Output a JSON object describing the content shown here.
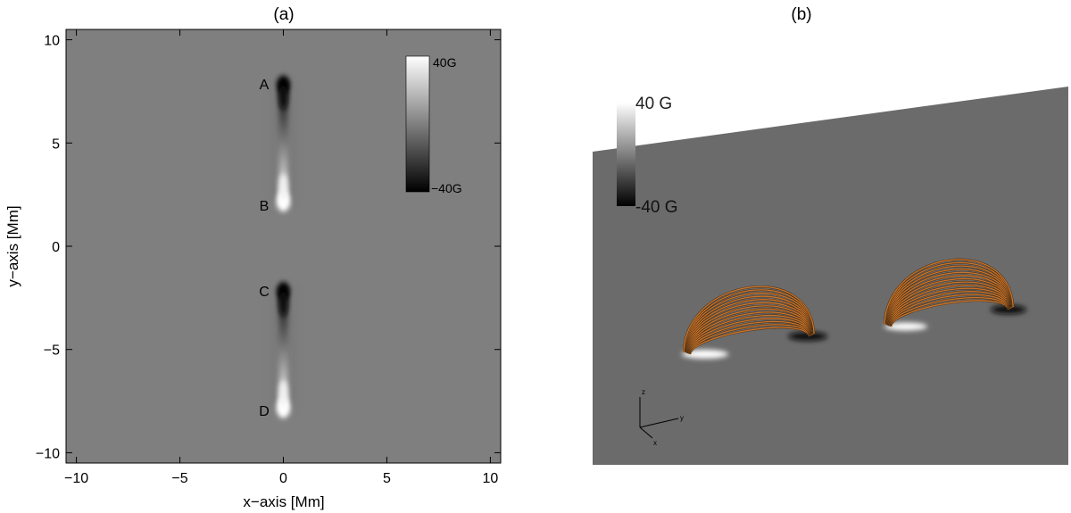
{
  "panel_a": {
    "label": "(a)",
    "colorbar": {
      "max_label": "40G",
      "min_label": "−40G"
    }
  },
  "panel_b": {
    "label": "(b)",
    "colorbar": {
      "max_label": "40 G",
      "min_label": "-40 G"
    },
    "axes_triad": {
      "z": "z",
      "y": "y",
      "x": "x"
    },
    "colors": {
      "plane": "#6b6b6b",
      "field_lines": "#c8742a"
    }
  },
  "chart_data": [
    {
      "type": "heatmap",
      "title": "(a)",
      "xlabel": "x−axis [Mm]",
      "ylabel": "y−axis [Mm]",
      "xlim": [
        -10.5,
        10.5
      ],
      "ylim": [
        -10.5,
        10.5
      ],
      "xticks": [
        -10,
        -5,
        0,
        5,
        10
      ],
      "yticks": [
        -10,
        -5,
        0,
        5,
        10
      ],
      "xtick_labels": [
        "−10",
        "−5",
        "0",
        "5",
        "10"
      ],
      "ytick_labels": [
        "−10",
        "−5",
        "0",
        "5",
        "10"
      ],
      "value_range_G": [
        -40,
        40
      ],
      "colormap": "grayscale (black = −40 G, white = 40 G)",
      "sources": [
        {
          "label": "A",
          "x": 0,
          "y": 8.0,
          "polarity": "negative"
        },
        {
          "label": "B",
          "x": 0,
          "y": 2.0,
          "polarity": "positive"
        },
        {
          "label": "C",
          "x": 0,
          "y": -2.0,
          "polarity": "negative"
        },
        {
          "label": "D",
          "x": 0,
          "y": -8.0,
          "polarity": "positive"
        }
      ]
    },
    {
      "type": "3d-render",
      "title": "(b)",
      "value_range_G": [
        -40,
        40
      ],
      "description_items": [
        "photospheric magnetogram plane",
        "two arcades of orange field lines"
      ]
    }
  ]
}
